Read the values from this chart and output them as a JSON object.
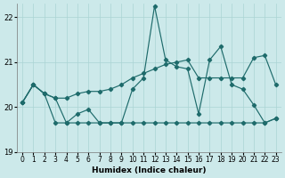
{
  "xlabel": "Humidex (Indice chaleur)",
  "ylim": [
    19,
    22.3
  ],
  "xlim": [
    -0.5,
    23.5
  ],
  "yticks": [
    19,
    20,
    21,
    22
  ],
  "xticks": [
    0,
    1,
    2,
    3,
    4,
    5,
    6,
    7,
    8,
    9,
    10,
    11,
    12,
    13,
    14,
    15,
    16,
    17,
    18,
    19,
    20,
    21,
    22,
    23
  ],
  "bg_color": "#cce9ea",
  "line_color": "#1e6b6b",
  "grid_color": "#aad4d4",
  "y_jagged": [
    20.1,
    20.5,
    20.3,
    20.2,
    19.65,
    19.85,
    19.95,
    19.65,
    19.65,
    19.65,
    20.4,
    20.65,
    22.25,
    21.05,
    20.9,
    20.85,
    19.85,
    21.05,
    21.35,
    20.5,
    20.4,
    20.05,
    19.65,
    19.75
  ],
  "y_upper": [
    20.1,
    20.5,
    20.3,
    20.2,
    20.2,
    20.3,
    20.35,
    20.35,
    20.4,
    20.5,
    20.65,
    20.75,
    20.85,
    20.95,
    21.0,
    21.05,
    20.65,
    20.65,
    20.65,
    20.65,
    20.65,
    21.1,
    21.15,
    20.5
  ],
  "y_lower": [
    20.1,
    20.5,
    20.3,
    19.65,
    19.65,
    19.65,
    19.65,
    19.65,
    19.65,
    19.65,
    19.65,
    19.65,
    19.65,
    19.65,
    19.65,
    19.65,
    19.65,
    19.65,
    19.65,
    19.65,
    19.65,
    19.65,
    19.65,
    19.75
  ]
}
